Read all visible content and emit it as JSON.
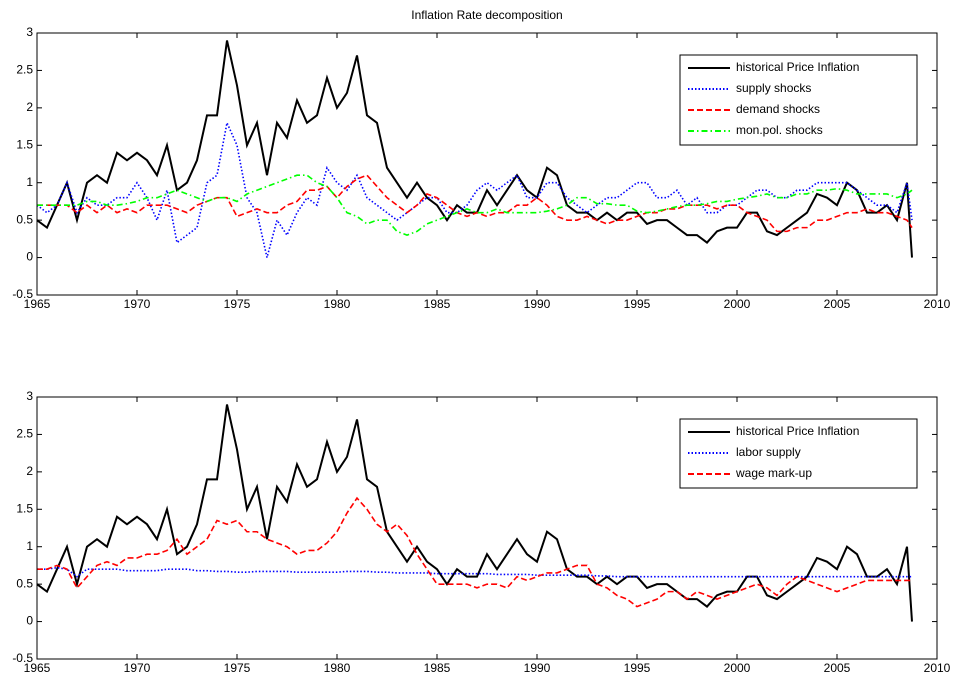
{
  "chart_data": [
    {
      "type": "line",
      "title": "Inflation Rate decomposition",
      "legend": "northeast",
      "xlim": [
        1965,
        2010
      ],
      "ylim": [
        -0.5,
        3
      ],
      "xticks": [
        1965,
        1970,
        1975,
        1980,
        1985,
        1990,
        1995,
        2000,
        2005,
        2010
      ],
      "yticks": [
        -0.5,
        0,
        0.5,
        1,
        1.5,
        2,
        2.5,
        3
      ],
      "x": [
        1965,
        1965.5,
        1966,
        1966.5,
        1967,
        1967.5,
        1968,
        1968.5,
        1969,
        1969.5,
        1970,
        1970.5,
        1971,
        1971.5,
        1972,
        1972.5,
        1973,
        1973.5,
        1974,
        1974.5,
        1975,
        1975.5,
        1976,
        1976.5,
        1977,
        1977.5,
        1978,
        1978.5,
        1979,
        1979.5,
        1980,
        1980.5,
        1981,
        1981.5,
        1982,
        1982.5,
        1983,
        1983.5,
        1984,
        1984.5,
        1985,
        1985.5,
        1986,
        1986.5,
        1987,
        1987.5,
        1988,
        1988.5,
        1989,
        1989.5,
        1990,
        1990.5,
        1991,
        1991.5,
        1992,
        1992.5,
        1993,
        1993.5,
        1994,
        1994.5,
        1995,
        1995.5,
        1996,
        1996.5,
        1997,
        1997.5,
        1998,
        1998.5,
        1999,
        1999.5,
        2000,
        2000.5,
        2001,
        2001.5,
        2002,
        2002.5,
        2003,
        2003.5,
        2004,
        2004.5,
        2005,
        2005.5,
        2006,
        2006.5,
        2007,
        2007.5,
        2008,
        2008.5,
        2008.75
      ],
      "series": [
        {
          "name": "historical Price Inflation",
          "color": "#000000",
          "linestyle": "solid",
          "values": [
            0.5,
            0.4,
            0.7,
            1.0,
            0.5,
            1.0,
            1.1,
            1.0,
            1.4,
            1.3,
            1.4,
            1.3,
            1.1,
            1.5,
            0.9,
            1.0,
            1.3,
            1.9,
            1.9,
            2.9,
            2.3,
            1.5,
            1.8,
            1.1,
            1.8,
            1.6,
            2.1,
            1.8,
            1.9,
            2.4,
            2.0,
            2.2,
            2.7,
            1.9,
            1.8,
            1.2,
            1.0,
            0.8,
            1.0,
            0.8,
            0.7,
            0.5,
            0.7,
            0.6,
            0.6,
            0.9,
            0.7,
            0.9,
            1.1,
            0.9,
            0.8,
            1.2,
            1.1,
            0.7,
            0.6,
            0.6,
            0.5,
            0.6,
            0.5,
            0.6,
            0.6,
            0.45,
            0.5,
            0.5,
            0.4,
            0.3,
            0.3,
            0.2,
            0.35,
            0.4,
            0.4,
            0.6,
            0.6,
            0.35,
            0.3,
            0.4,
            0.5,
            0.6,
            0.85,
            0.8,
            0.7,
            1.0,
            0.9,
            0.6,
            0.6,
            0.7,
            0.5,
            1.0,
            0.0
          ]
        },
        {
          "name": "supply shocks",
          "color": "#0000ff",
          "linestyle": "dotted",
          "values": [
            0.7,
            0.6,
            0.7,
            1.0,
            0.6,
            0.8,
            0.7,
            0.7,
            0.8,
            0.8,
            1.0,
            0.8,
            0.5,
            0.9,
            0.2,
            0.3,
            0.4,
            1.0,
            1.1,
            1.8,
            1.5,
            0.8,
            0.6,
            0.0,
            0.5,
            0.3,
            0.6,
            0.8,
            0.7,
            1.2,
            1.0,
            0.9,
            1.1,
            0.8,
            0.7,
            0.6,
            0.5,
            0.6,
            0.7,
            0.8,
            0.8,
            0.6,
            0.6,
            0.7,
            0.9,
            1.0,
            0.9,
            1.0,
            1.1,
            0.8,
            0.8,
            1.0,
            1.0,
            0.8,
            0.7,
            0.6,
            0.7,
            0.8,
            0.8,
            0.9,
            1.0,
            1.0,
            0.8,
            0.8,
            0.9,
            0.7,
            0.8,
            0.6,
            0.6,
            0.7,
            0.7,
            0.8,
            0.9,
            0.9,
            0.8,
            0.8,
            0.9,
            0.9,
            1.0,
            1.0,
            1.0,
            1.0,
            0.9,
            0.8,
            0.7,
            0.7,
            0.6,
            1.0,
            0.5
          ]
        },
        {
          "name": "demand shocks",
          "color": "#ff0000",
          "linestyle": "dashed",
          "values": [
            0.7,
            0.7,
            0.7,
            0.7,
            0.6,
            0.7,
            0.6,
            0.7,
            0.6,
            0.65,
            0.6,
            0.7,
            0.7,
            0.7,
            0.65,
            0.6,
            0.7,
            0.75,
            0.8,
            0.8,
            0.55,
            0.6,
            0.65,
            0.6,
            0.6,
            0.7,
            0.75,
            0.9,
            0.9,
            0.95,
            0.8,
            0.95,
            1.05,
            1.1,
            0.95,
            0.8,
            0.7,
            0.6,
            0.7,
            0.85,
            0.8,
            0.7,
            0.6,
            0.55,
            0.6,
            0.55,
            0.6,
            0.6,
            0.7,
            0.7,
            0.8,
            0.7,
            0.55,
            0.5,
            0.5,
            0.55,
            0.5,
            0.45,
            0.5,
            0.5,
            0.55,
            0.6,
            0.6,
            0.65,
            0.65,
            0.7,
            0.7,
            0.7,
            0.65,
            0.7,
            0.7,
            0.6,
            0.55,
            0.5,
            0.35,
            0.35,
            0.4,
            0.4,
            0.5,
            0.5,
            0.55,
            0.6,
            0.6,
            0.65,
            0.6,
            0.6,
            0.55,
            0.5,
            0.4
          ]
        },
        {
          "name": "mon.pol. shocks",
          "color": "#00ff00",
          "linestyle": "dashdot",
          "values": [
            0.7,
            0.7,
            0.7,
            0.7,
            0.7,
            0.75,
            0.75,
            0.7,
            0.7,
            0.72,
            0.75,
            0.8,
            0.8,
            0.85,
            0.9,
            0.85,
            0.8,
            0.75,
            0.8,
            0.8,
            0.75,
            0.85,
            0.9,
            0.95,
            1.0,
            1.05,
            1.1,
            1.1,
            1.0,
            0.95,
            0.8,
            0.6,
            0.55,
            0.45,
            0.5,
            0.5,
            0.35,
            0.3,
            0.35,
            0.45,
            0.5,
            0.55,
            0.6,
            0.65,
            0.6,
            0.6,
            0.65,
            0.6,
            0.6,
            0.6,
            0.6,
            0.62,
            0.65,
            0.7,
            0.8,
            0.8,
            0.72,
            0.72,
            0.7,
            0.7,
            0.62,
            0.6,
            0.62,
            0.65,
            0.68,
            0.7,
            0.7,
            0.72,
            0.75,
            0.75,
            0.78,
            0.8,
            0.82,
            0.85,
            0.8,
            0.8,
            0.85,
            0.85,
            0.9,
            0.9,
            0.92,
            0.9,
            0.85,
            0.85,
            0.85,
            0.85,
            0.8,
            0.85,
            0.9
          ]
        }
      ]
    },
    {
      "type": "line",
      "legend": "northeast",
      "xlim": [
        1965,
        2010
      ],
      "ylim": [
        -0.5,
        3
      ],
      "xticks": [
        1965,
        1970,
        1975,
        1980,
        1985,
        1990,
        1995,
        2000,
        2005,
        2010
      ],
      "yticks": [
        -0.5,
        0,
        0.5,
        1,
        1.5,
        2,
        2.5,
        3
      ],
      "x": [
        1965,
        1965.5,
        1966,
        1966.5,
        1967,
        1967.5,
        1968,
        1968.5,
        1969,
        1969.5,
        1970,
        1970.5,
        1971,
        1971.5,
        1972,
        1972.5,
        1973,
        1973.5,
        1974,
        1974.5,
        1975,
        1975.5,
        1976,
        1976.5,
        1977,
        1977.5,
        1978,
        1978.5,
        1979,
        1979.5,
        1980,
        1980.5,
        1981,
        1981.5,
        1982,
        1982.5,
        1983,
        1983.5,
        1984,
        1984.5,
        1985,
        1985.5,
        1986,
        1986.5,
        1987,
        1987.5,
        1988,
        1988.5,
        1989,
        1989.5,
        1990,
        1990.5,
        1991,
        1991.5,
        1992,
        1992.5,
        1993,
        1993.5,
        1994,
        1994.5,
        1995,
        1995.5,
        1996,
        1996.5,
        1997,
        1997.5,
        1998,
        1998.5,
        1999,
        1999.5,
        2000,
        2000.5,
        2001,
        2001.5,
        2002,
        2002.5,
        2003,
        2003.5,
        2004,
        2004.5,
        2005,
        2005.5,
        2006,
        2006.5,
        2007,
        2007.5,
        2008,
        2008.5,
        2008.75
      ],
      "series": [
        {
          "name": "historical Price Inflation",
          "color": "#000000",
          "linestyle": "solid",
          "values": [
            0.5,
            0.4,
            0.7,
            1.0,
            0.5,
            1.0,
            1.1,
            1.0,
            1.4,
            1.3,
            1.4,
            1.3,
            1.1,
            1.5,
            0.9,
            1.0,
            1.3,
            1.9,
            1.9,
            2.9,
            2.3,
            1.5,
            1.8,
            1.1,
            1.8,
            1.6,
            2.1,
            1.8,
            1.9,
            2.4,
            2.0,
            2.2,
            2.7,
            1.9,
            1.8,
            1.2,
            1.0,
            0.8,
            1.0,
            0.8,
            0.7,
            0.5,
            0.7,
            0.6,
            0.6,
            0.9,
            0.7,
            0.9,
            1.1,
            0.9,
            0.8,
            1.2,
            1.1,
            0.7,
            0.6,
            0.6,
            0.5,
            0.6,
            0.5,
            0.6,
            0.6,
            0.45,
            0.5,
            0.5,
            0.4,
            0.3,
            0.3,
            0.2,
            0.35,
            0.4,
            0.4,
            0.6,
            0.6,
            0.35,
            0.3,
            0.4,
            0.5,
            0.6,
            0.85,
            0.8,
            0.7,
            1.0,
            0.9,
            0.6,
            0.6,
            0.7,
            0.5,
            1.0,
            0.0
          ]
        },
        {
          "name": "labor supply",
          "color": "#0000ff",
          "linestyle": "dotted",
          "values": [
            0.7,
            0.7,
            0.72,
            0.7,
            0.6,
            0.7,
            0.7,
            0.7,
            0.7,
            0.68,
            0.68,
            0.68,
            0.68,
            0.7,
            0.7,
            0.7,
            0.68,
            0.68,
            0.67,
            0.67,
            0.66,
            0.66,
            0.67,
            0.67,
            0.67,
            0.67,
            0.66,
            0.66,
            0.66,
            0.66,
            0.66,
            0.67,
            0.67,
            0.67,
            0.66,
            0.66,
            0.65,
            0.65,
            0.65,
            0.65,
            0.64,
            0.64,
            0.64,
            0.64,
            0.64,
            0.64,
            0.63,
            0.63,
            0.63,
            0.63,
            0.62,
            0.62,
            0.62,
            0.62,
            0.62,
            0.62,
            0.61,
            0.61,
            0.6,
            0.6,
            0.6,
            0.6,
            0.6,
            0.6,
            0.6,
            0.6,
            0.6,
            0.6,
            0.6,
            0.6,
            0.6,
            0.6,
            0.6,
            0.6,
            0.6,
            0.6,
            0.6,
            0.6,
            0.6,
            0.6,
            0.6,
            0.6,
            0.6,
            0.6,
            0.6,
            0.6,
            0.6,
            0.6,
            0.6
          ]
        },
        {
          "name": "wage mark-up",
          "color": "#ff0000",
          "linestyle": "dashed",
          "values": [
            0.7,
            0.7,
            0.75,
            0.7,
            0.45,
            0.6,
            0.75,
            0.8,
            0.75,
            0.85,
            0.85,
            0.9,
            0.9,
            0.95,
            1.1,
            0.9,
            1.0,
            1.1,
            1.35,
            1.3,
            1.35,
            1.2,
            1.2,
            1.1,
            1.05,
            1.0,
            0.9,
            0.95,
            0.95,
            1.05,
            1.2,
            1.45,
            1.65,
            1.5,
            1.3,
            1.2,
            1.3,
            1.15,
            0.9,
            0.7,
            0.5,
            0.5,
            0.5,
            0.5,
            0.45,
            0.5,
            0.5,
            0.45,
            0.6,
            0.55,
            0.6,
            0.65,
            0.65,
            0.7,
            0.75,
            0.75,
            0.5,
            0.45,
            0.35,
            0.3,
            0.2,
            0.25,
            0.3,
            0.4,
            0.4,
            0.3,
            0.4,
            0.35,
            0.3,
            0.35,
            0.4,
            0.45,
            0.5,
            0.45,
            0.35,
            0.5,
            0.6,
            0.55,
            0.5,
            0.45,
            0.4,
            0.45,
            0.5,
            0.55,
            0.55,
            0.55,
            0.55,
            0.55,
            0.55
          ]
        }
      ]
    }
  ]
}
